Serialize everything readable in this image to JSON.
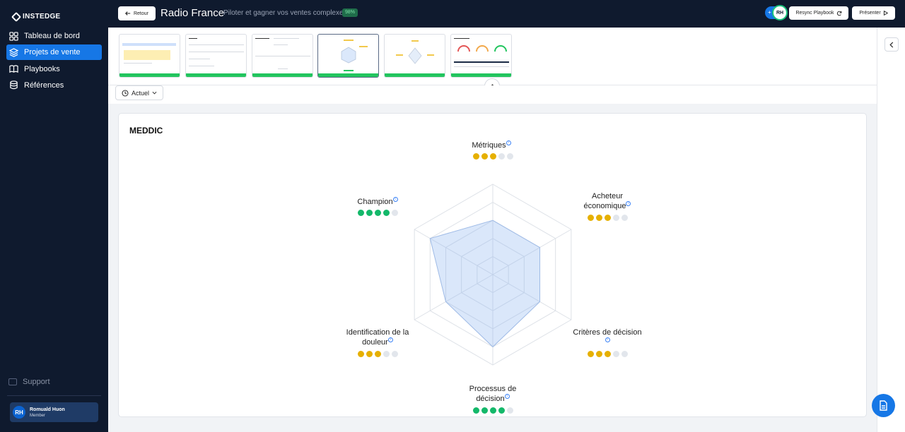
{
  "brand": "INSTEDGE",
  "nav": [
    {
      "label": "Tableau de bord",
      "icon": "grid-icon"
    },
    {
      "label": "Projets de vente",
      "icon": "layers-icon",
      "active": true
    },
    {
      "label": "Playbooks",
      "icon": "book-icon"
    },
    {
      "label": "Références",
      "icon": "database-icon"
    }
  ],
  "support_label": "Support",
  "user": {
    "initials": "RH",
    "name": "Romuald Huon",
    "role": "Member"
  },
  "header": {
    "back_label": "Retour",
    "title": "Radio France",
    "separator": "-",
    "subtitle": "Piloter et gagner vos ventes complexes",
    "percent": "98%",
    "avatar_initials": "RH",
    "resync_label": "Resync Playbook",
    "present_label": "Présenter"
  },
  "filter": {
    "label": "Actuel"
  },
  "card": {
    "title": "MEDDIC",
    "axes": [
      {
        "label": "Métriques",
        "score": 3,
        "color": "#e6b000"
      },
      {
        "label": "Acheteur économique",
        "score": 3,
        "color": "#e6b000"
      },
      {
        "label": "Critères de décision",
        "score": 3,
        "color": "#e6b000"
      },
      {
        "label": "Processus de décision",
        "score": 4,
        "color": "#14b86a"
      },
      {
        "label": "Identification de la douleur",
        "score": 3,
        "color": "#e6b000"
      },
      {
        "label": "Champion",
        "score": 4,
        "color": "#14b86a"
      }
    ],
    "max_score": 5
  },
  "colors": {
    "accent": "#1677e6",
    "sidebar": "#0f1a2e",
    "success": "#22c55e"
  }
}
